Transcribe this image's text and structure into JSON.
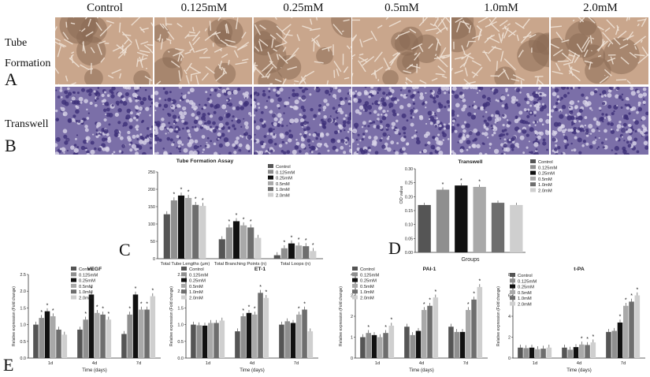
{
  "columns": [
    "Control",
    "0.125mM",
    "0.25mM",
    "0.5mM",
    "1.0mM",
    "2.0mM"
  ],
  "rows": {
    "tube_label_line1": "Tube",
    "tube_label_line2": "Formation",
    "tube_letter": "A",
    "transwell_label": "Transwell",
    "transwell_letter": "B"
  },
  "panel_letters": {
    "C": "C",
    "D": "D",
    "E": "E"
  },
  "legend_labels": [
    "Control",
    "0.125mM",
    "0.25mM",
    "0.5mM",
    "1.0mM",
    "2.0mM"
  ],
  "colors": {
    "series": [
      "#555555",
      "#8f8f8f",
      "#111111",
      "#a9a9a9",
      "#6e6e6e",
      "#cfcfcf"
    ],
    "tube_bg": "#c9a68c",
    "transwell_bg": "#7b6fa8"
  },
  "chart_data": [
    {
      "id": "C",
      "type": "bar",
      "title": "Tube Formation Assay",
      "categories": [
        "Total Tube Lengths (μm)",
        "Total Branching Points (n)",
        "Total Loops (n)"
      ],
      "ylim": [
        0,
        250
      ],
      "yticks": [
        "0",
        "50",
        "100",
        "150",
        "200",
        "250"
      ],
      "series": [
        {
          "name": "Control",
          "values": [
            128,
            56,
            10
          ]
        },
        {
          "name": "0.125mM",
          "values": [
            168,
            90,
            30
          ]
        },
        {
          "name": "0.25mM",
          "values": [
            182,
            108,
            44
          ]
        },
        {
          "name": "0.5mM",
          "values": [
            175,
            96,
            38
          ]
        },
        {
          "name": "1.0mM",
          "values": [
            155,
            90,
            36
          ]
        },
        {
          "name": "2.0mM",
          "values": [
            152,
            60,
            22
          ]
        }
      ],
      "star": "*"
    },
    {
      "id": "D",
      "type": "bar",
      "title": "Transwell",
      "xlabel": "Groups",
      "ylabel": "OD value",
      "ylim": [
        0,
        0.3
      ],
      "yticks": [
        "0.00",
        "0.05",
        "0.10",
        "0.15",
        "0.20",
        "0.25",
        "0.30"
      ],
      "values": [
        0.17,
        0.225,
        0.24,
        0.235,
        0.178,
        0.17
      ],
      "star": "*"
    },
    {
      "id": "E1",
      "type": "bar",
      "title": "VEGF",
      "xlabel": "Time (days)",
      "ylabel": "Relative expression (Fold change)",
      "categories": [
        "1d",
        "4d",
        "7d"
      ],
      "ylim": [
        0,
        2.5
      ],
      "yticks": [
        "0.0",
        "0.5",
        "1.0",
        "1.5",
        "2.0",
        "2.5"
      ],
      "series": [
        {
          "name": "Control",
          "values": [
            1.0,
            0.85,
            0.72
          ]
        },
        {
          "name": "0.125mM",
          "values": [
            1.2,
            1.15,
            1.3
          ]
        },
        {
          "name": "0.25mM",
          "values": [
            1.4,
            1.9,
            1.9
          ]
        },
        {
          "name": "0.5mM",
          "values": [
            1.25,
            1.35,
            1.45
          ]
        },
        {
          "name": "1.0mM",
          "values": [
            0.85,
            1.3,
            1.45
          ]
        },
        {
          "name": "2.0mM",
          "values": [
            0.7,
            1.15,
            1.85
          ]
        }
      ],
      "star": "*"
    },
    {
      "id": "E2",
      "type": "bar",
      "title": "ET-1",
      "xlabel": "Time (days)",
      "ylabel": "Relative expression (Fold change)",
      "categories": [
        "1d",
        "4d",
        "7d"
      ],
      "ylim": [
        0,
        2.5
      ],
      "yticks": [
        "0.0",
        "0.5",
        "1.0",
        "1.5",
        "2.0",
        "2.5"
      ],
      "series": [
        {
          "name": "Control",
          "values": [
            1.0,
            0.8,
            1.0
          ]
        },
        {
          "name": "0.125mM",
          "values": [
            0.98,
            1.25,
            1.1
          ]
        },
        {
          "name": "0.25mM",
          "values": [
            0.97,
            1.35,
            1.05
          ]
        },
        {
          "name": "0.5mM",
          "values": [
            1.05,
            1.3,
            1.3
          ]
        },
        {
          "name": "1.0mM",
          "values": [
            1.05,
            1.95,
            1.45
          ]
        },
        {
          "name": "2.0mM",
          "values": [
            1.12,
            1.8,
            0.8
          ]
        }
      ],
      "star": "*"
    },
    {
      "id": "E3",
      "type": "bar",
      "title": "PAI-1",
      "xlabel": "Time (days)",
      "ylabel": "Relative expression (Fold change)",
      "categories": [
        "1d",
        "4d",
        "7d"
      ],
      "ylim": [
        0,
        4
      ],
      "yticks": [
        "0",
        "1",
        "2",
        "3",
        "4"
      ],
      "series": [
        {
          "name": "Control",
          "values": [
            1.0,
            1.5,
            1.5
          ]
        },
        {
          "name": "0.125mM",
          "values": [
            1.2,
            1.1,
            1.25
          ]
        },
        {
          "name": "0.25mM",
          "values": [
            1.1,
            1.3,
            1.25
          ]
        },
        {
          "name": "0.5mM",
          "values": [
            1.0,
            2.3,
            2.3
          ]
        },
        {
          "name": "1.0mM",
          "values": [
            1.2,
            2.5,
            2.8
          ]
        },
        {
          "name": "2.0mM",
          "values": [
            1.55,
            2.9,
            3.4
          ]
        }
      ],
      "star": "*"
    },
    {
      "id": "E4",
      "type": "bar",
      "title": "t-PA",
      "xlabel": "Time (days)",
      "ylabel": "Relative expression (Fold change)",
      "categories": [
        "1d",
        "4d",
        "7d"
      ],
      "ylim": [
        0,
        8
      ],
      "yticks": [
        "0",
        "2",
        "4",
        "6",
        "8"
      ],
      "series": [
        {
          "name": "Control",
          "values": [
            1.0,
            1.0,
            2.5
          ]
        },
        {
          "name": "0.125mM",
          "values": [
            0.95,
            0.8,
            2.6
          ]
        },
        {
          "name": "0.25mM",
          "values": [
            1.0,
            1.05,
            3.4
          ]
        },
        {
          "name": "0.5mM",
          "values": [
            0.85,
            1.3,
            5.0
          ]
        },
        {
          "name": "1.0mM",
          "values": [
            0.9,
            1.25,
            5.4
          ]
        },
        {
          "name": "2.0mM",
          "values": [
            1.0,
            1.5,
            6.0
          ]
        }
      ],
      "star": "*"
    }
  ]
}
